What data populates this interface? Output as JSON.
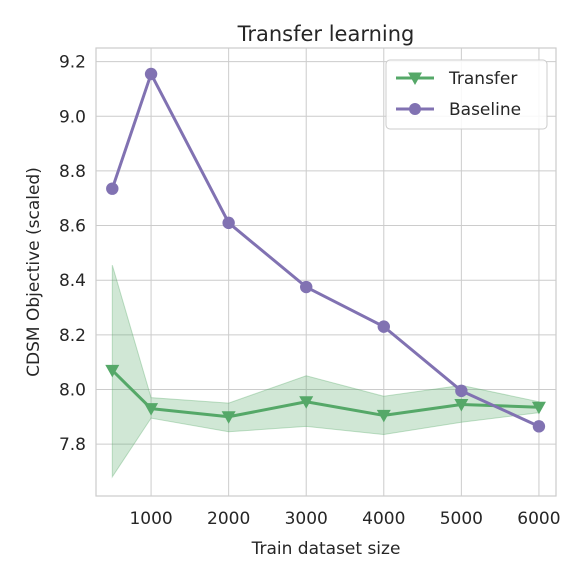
{
  "chart_data": {
    "type": "line",
    "title": "Transfer learning",
    "xlabel": "Train dataset size",
    "ylabel": "CDSM Objective (scaled)",
    "xlim": [
      290,
      6220
    ],
    "ylim": [
      7.61,
      9.25
    ],
    "xticks": [
      1000,
      2000,
      3000,
      4000,
      5000,
      6000
    ],
    "yticks": [
      7.8,
      8.0,
      8.2,
      8.4,
      8.6,
      8.8,
      9.0,
      9.2
    ],
    "xtick_labels": [
      "1000",
      "2000",
      "3000",
      "4000",
      "5000",
      "6000"
    ],
    "ytick_labels": [
      "7.8",
      "8.0",
      "8.2",
      "8.4",
      "8.6",
      "8.8",
      "9.0",
      "9.2"
    ],
    "grid": true,
    "legend_position": "top-right",
    "x": [
      500,
      1000,
      2000,
      3000,
      4000,
      5000,
      6000
    ],
    "series": [
      {
        "name": "Transfer",
        "color": "#55a868",
        "marker": "triangle-down",
        "values": [
          8.07,
          7.93,
          7.9,
          7.955,
          7.905,
          7.945,
          7.935
        ],
        "band_lower": [
          7.68,
          7.895,
          7.845,
          7.865,
          7.835,
          7.88,
          7.915
        ],
        "band_upper": [
          8.455,
          7.97,
          7.95,
          8.05,
          7.975,
          8.015,
          7.955
        ]
      },
      {
        "name": "Baseline",
        "color": "#8172b2",
        "marker": "circle",
        "values": [
          8.735,
          9.155,
          8.61,
          8.375,
          8.23,
          7.995,
          7.865
        ]
      }
    ]
  }
}
